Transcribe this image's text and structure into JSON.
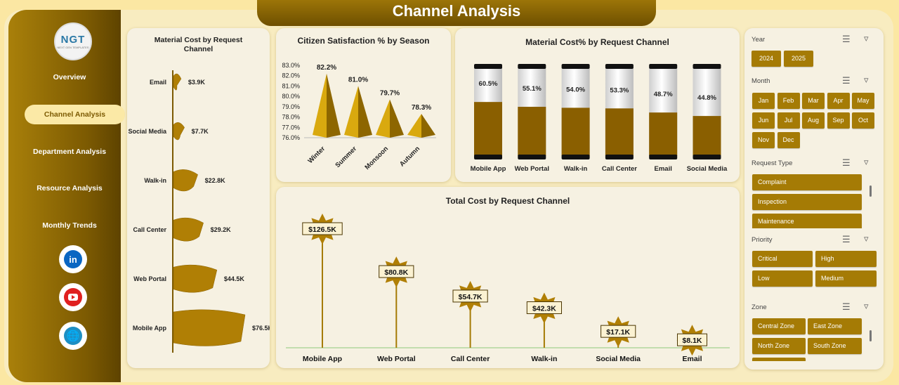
{
  "title": "Channel Analysis",
  "logo": {
    "text": "NGT",
    "tagline": "NEXT GEN TEMPLATES"
  },
  "nav": [
    "Overview",
    "Channel Analysis",
    "Department  Analysis",
    "Resource Analysis",
    "Monthly Trends"
  ],
  "active_nav": "Channel Analysis",
  "social_icons": [
    "linkedin-icon",
    "youtube-icon",
    "globe-icon"
  ],
  "colors": {
    "gold": "#a57b05",
    "dark_gold": "#7c5a02",
    "background": "#fbe7a3"
  },
  "chart_data": [
    {
      "type": "bar",
      "orientation": "horizontal",
      "title": "Material Cost by Request Channel",
      "categories": [
        "Email",
        "Social Media",
        "Walk-in",
        "Call Center",
        "Web Portal",
        "Mobile App"
      ],
      "values": [
        3.9,
        7.7,
        22.8,
        29.2,
        44.5,
        76.5
      ],
      "labels": [
        "$3.9K",
        "$7.7K",
        "$22.8K",
        "$29.2K",
        "$44.5K",
        "$76.5K"
      ]
    },
    {
      "type": "bar",
      "title": "Citizen Satisfaction % by Season",
      "categories": [
        "Winter",
        "Summer",
        "Monsoon",
        "Autumn"
      ],
      "values": [
        82.2,
        81.0,
        79.7,
        78.3
      ],
      "labels": [
        "82.2%",
        "81.0%",
        "79.7%",
        "78.3%"
      ],
      "yticks": [
        "76.0%",
        "77.0%",
        "78.0%",
        "79.0%",
        "80.0%",
        "81.0%",
        "82.0%",
        "83.0%"
      ],
      "ylim": [
        76,
        83
      ]
    },
    {
      "type": "bar",
      "title": "Material Cost% by Request Channel",
      "categories": [
        "Mobile App",
        "Web Portal",
        "Walk-in",
        "Call Center",
        "Email",
        "Social Media"
      ],
      "values": [
        60.5,
        55.1,
        54.0,
        53.3,
        48.7,
        44.8
      ],
      "labels": [
        "60.5%",
        "55.1%",
        "54.0%",
        "53.3%",
        "48.7%",
        "44.8%"
      ],
      "ylim": [
        0,
        100
      ]
    },
    {
      "type": "scatter",
      "title": "Total Cost by Request Channel",
      "categories": [
        "Mobile App",
        "Web Portal",
        "Call Center",
        "Walk-in",
        "Social Media",
        "Email"
      ],
      "values": [
        126.5,
        80.8,
        54.7,
        42.3,
        17.1,
        8.1
      ],
      "labels": [
        "$126.5K",
        "$80.8K",
        "$54.7K",
        "$42.3K",
        "$17.1K",
        "$8.1K"
      ]
    }
  ],
  "slicers": {
    "year": {
      "label": "Year",
      "options": [
        "2024",
        "2025"
      ]
    },
    "month": {
      "label": "Month",
      "options": [
        "Jan",
        "Feb",
        "Mar",
        "Apr",
        "May",
        "Jun",
        "Jul",
        "Aug",
        "Sep",
        "Oct",
        "Nov",
        "Dec"
      ]
    },
    "request_type": {
      "label": "Request Type",
      "options": [
        "Complaint",
        "Inspection",
        "Maintenance"
      ]
    },
    "priority": {
      "label": "Priority",
      "options": [
        "Critical",
        "High",
        "Low",
        "Medium"
      ]
    },
    "zone": {
      "label": "Zone",
      "options": [
        "Central Zone",
        "East Zone",
        "North Zone",
        "South Zone"
      ]
    }
  }
}
